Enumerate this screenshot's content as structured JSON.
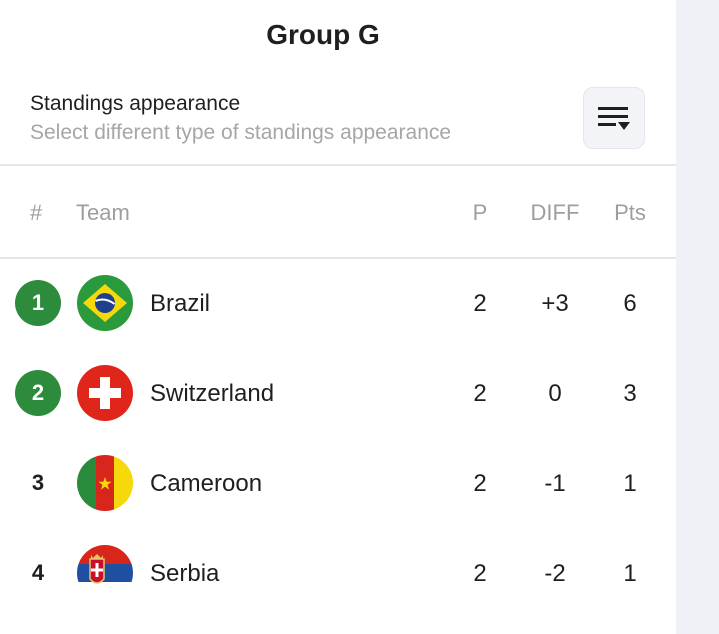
{
  "group_title": "Group G",
  "appearance": {
    "label": "Standings appearance",
    "description": "Select different type of standings appearance"
  },
  "columns": {
    "rank": "#",
    "team": "Team",
    "played": "P",
    "diff": "DIFF",
    "points": "Pts"
  },
  "rows": [
    {
      "rank": "1",
      "team": "Brazil",
      "played": "2",
      "diff": "+3",
      "points": "6",
      "qualified": true,
      "flag": "brazil-flag"
    },
    {
      "rank": "2",
      "team": "Switzerland",
      "played": "2",
      "diff": "0",
      "points": "3",
      "qualified": true,
      "flag": "switzerland-flag"
    },
    {
      "rank": "3",
      "team": "Cameroon",
      "played": "2",
      "diff": "-1",
      "points": "1",
      "qualified": false,
      "flag": "cameroon-flag"
    },
    {
      "rank": "4",
      "team": "Serbia",
      "played": "2",
      "diff": "-2",
      "points": "1",
      "qualified": false,
      "flag": "serbia-flag"
    }
  ],
  "colors": {
    "qualified_badge": "#2c8c3c",
    "sidebar": "#eef1f6"
  }
}
